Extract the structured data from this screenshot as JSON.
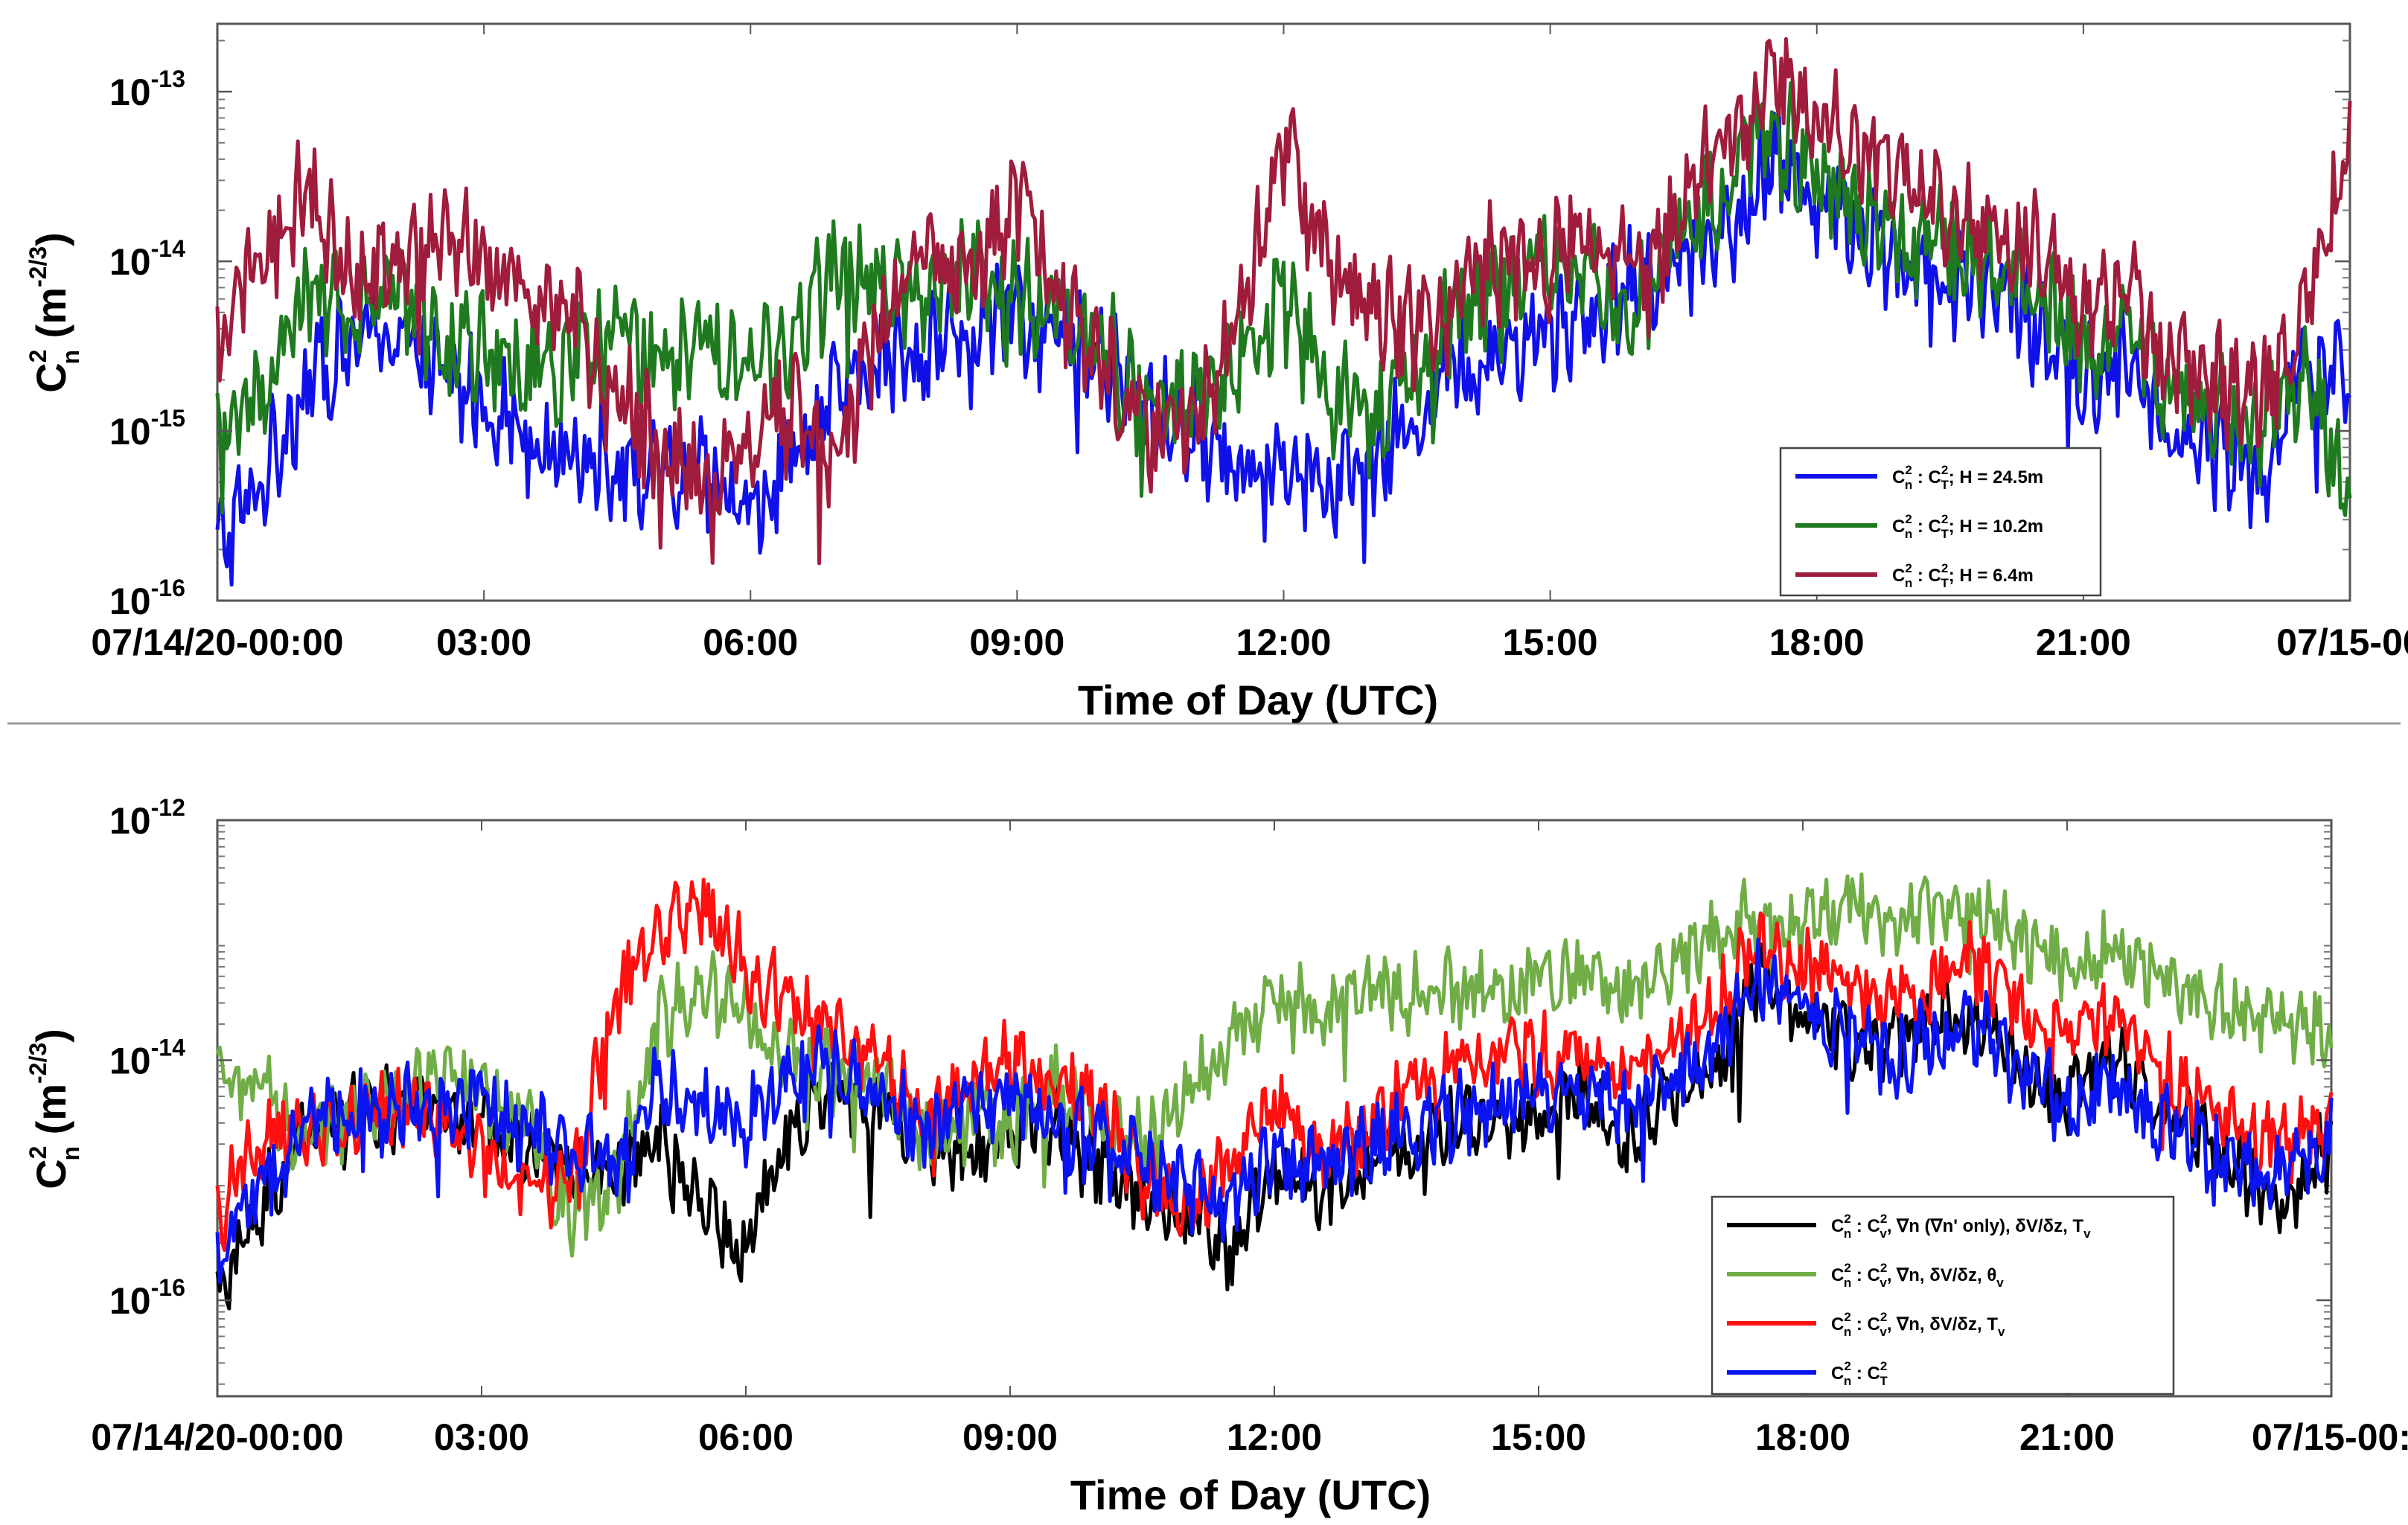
{
  "chart_data": [
    {
      "type": "line",
      "panel": "top",
      "xlabel": "Time of Day (UTC)",
      "ylabel": "C_n^2 (m^-2/3)",
      "yscale": "log",
      "xlim_hours": [
        0,
        24
      ],
      "ylim_exp": [
        -16,
        -12.6
      ],
      "x_tick_labels": [
        "07/14/20-00:00",
        "03:00",
        "06:00",
        "09:00",
        "12:00",
        "15:00",
        "18:00",
        "21:00",
        "07/15-00"
      ],
      "y_tick_exponents": [
        "-16",
        "-15",
        "-14",
        "-13"
      ],
      "legend_position": "bottom-right",
      "series": [
        {
          "name": "C_n^2 : C_T^2; H = 24.5m",
          "label_suffix": "; H = 24.5m",
          "color": "#1010e8",
          "x": [
            0,
            0.5,
            1,
            1.5,
            2,
            2.5,
            3,
            3.5,
            4,
            4.5,
            5,
            5.5,
            6,
            6.5,
            7,
            7.5,
            8,
            8.5,
            9,
            9.5,
            10,
            10.5,
            11,
            11.5,
            12,
            12.5,
            13,
            13.5,
            14,
            14.5,
            15,
            15.5,
            16,
            16.5,
            17,
            17.5,
            18,
            18.5,
            19,
            19.5,
            20,
            20.5,
            21,
            21.5,
            22,
            22.5,
            23,
            23.5,
            24
          ],
          "y": [
            -15.7,
            -15.3,
            -14.7,
            -14.5,
            -14.4,
            -14.7,
            -14.8,
            -15.0,
            -15.1,
            -15.2,
            -15.3,
            -15.3,
            -15.5,
            -15.1,
            -14.8,
            -14.6,
            -14.5,
            -14.4,
            -14.3,
            -14.5,
            -14.6,
            -14.9,
            -15.0,
            -15.2,
            -15.1,
            -15.3,
            -15.2,
            -14.9,
            -14.6,
            -14.5,
            -14.4,
            -14.3,
            -14.1,
            -14.0,
            -13.8,
            -13.4,
            -13.6,
            -13.8,
            -14.0,
            -14.2,
            -14.1,
            -14.4,
            -14.7,
            -14.6,
            -15.0,
            -15.1,
            -15.3,
            -14.6,
            -14.7
          ]
        },
        {
          "name": "C_n^2 : C_T^2; H = 10.2m",
          "label_suffix": "; H = 10.2m",
          "color": "#1f7a1f",
          "x": [
            0,
            0.5,
            1,
            1.5,
            2,
            2.5,
            3,
            3.5,
            4,
            4.5,
            5,
            5.5,
            6,
            6.5,
            7,
            7.5,
            8,
            8.5,
            9,
            9.5,
            10,
            10.5,
            11,
            11.5,
            12,
            12.5,
            13,
            13.5,
            14,
            14.5,
            15,
            15.5,
            16,
            16.5,
            17,
            17.5,
            18,
            18.5,
            19,
            19.5,
            20,
            20.5,
            21,
            21.5,
            22,
            22.5,
            23,
            23.5,
            24
          ],
          "y": [
            -15.0,
            -14.8,
            -14.2,
            -14.3,
            -14.2,
            -14.4,
            -14.5,
            -14.7,
            -14.6,
            -14.4,
            -14.6,
            -14.5,
            -14.7,
            -14.4,
            -14.0,
            -14.1,
            -14.2,
            -14.0,
            -14.2,
            -14.3,
            -14.5,
            -14.9,
            -14.8,
            -14.6,
            -14.2,
            -14.8,
            -14.9,
            -14.6,
            -14.3,
            -14.2,
            -14.0,
            -14.1,
            -14.3,
            -13.8,
            -13.5,
            -13.2,
            -13.5,
            -13.7,
            -13.9,
            -13.9,
            -14.0,
            -14.2,
            -14.5,
            -14.4,
            -14.8,
            -14.9,
            -15.0,
            -14.6,
            -15.5
          ]
        },
        {
          "name": "C_n^2 : C_T^2; H = 6.4m",
          "label_suffix": "; H = 6.4m",
          "color": "#a01c3c",
          "x": [
            0,
            0.5,
            1,
            1.5,
            2,
            2.5,
            3,
            3.5,
            4,
            4.5,
            5,
            5.5,
            6,
            6.5,
            7,
            7.5,
            8,
            8.5,
            9,
            9.5,
            10,
            10.5,
            11,
            11.5,
            12,
            12.5,
            13,
            13.5,
            14,
            14.5,
            15,
            15.5,
            16,
            16.5,
            17,
            17.5,
            18,
            18.5,
            19,
            19.5,
            20,
            20.5,
            21,
            21.5,
            22,
            22.5,
            23,
            23.5,
            24
          ],
          "y": [
            -14.5,
            -14.0,
            -13.6,
            -14.1,
            -14.0,
            -13.8,
            -14.0,
            -14.2,
            -14.3,
            -14.8,
            -15.1,
            -15.3,
            -15.0,
            -14.9,
            -15.1,
            -14.3,
            -14.0,
            -14.1,
            -13.6,
            -14.3,
            -14.6,
            -15.0,
            -14.9,
            -14.4,
            -13.3,
            -14.0,
            -14.3,
            -14.4,
            -14.1,
            -14.0,
            -14.0,
            -13.8,
            -14.2,
            -13.6,
            -13.3,
            -12.9,
            -13.2,
            -13.3,
            -13.6,
            -13.7,
            -13.8,
            -13.9,
            -14.4,
            -14.2,
            -14.6,
            -14.7,
            -14.8,
            -14.3,
            -13.3
          ]
        }
      ]
    },
    {
      "type": "line",
      "panel": "bottom",
      "xlabel": "Time of Day (UTC)",
      "ylabel": "C_n^2 (m^-2/3)",
      "yscale": "log",
      "xlim_hours": [
        0,
        24
      ],
      "ylim_exp": [
        -16.8,
        -12
      ],
      "x_tick_labels": [
        "07/14/20-00:00",
        "03:00",
        "06:00",
        "09:00",
        "12:00",
        "15:00",
        "18:00",
        "21:00",
        "07/15-00:"
      ],
      "y_tick_exponents": [
        "-16",
        "-14",
        "-12"
      ],
      "legend_position": "bottom-right",
      "series": [
        {
          "name": "C_n^2 : C_v^2, ∇n (∇n' only), δV/δz, T_v",
          "label_suffix": ", ∇n (∇n' only), δV/δz, T",
          "label_sub": "v",
          "color": "#000000",
          "x": [
            0,
            0.5,
            1,
            1.5,
            2,
            2.5,
            3,
            3.5,
            4,
            4.5,
            5,
            5.5,
            6,
            6.5,
            7,
            7.5,
            8,
            8.5,
            9,
            9.5,
            10,
            10.5,
            11,
            11.5,
            12,
            12.5,
            13,
            13.5,
            14,
            14.5,
            15,
            15.5,
            16,
            16.5,
            17,
            17.5,
            18,
            18.5,
            19,
            19.5,
            20,
            20.5,
            21,
            21.5,
            22,
            22.5,
            23,
            23.5,
            24
          ],
          "y": [
            -15.9,
            -15.2,
            -14.6,
            -14.5,
            -14.3,
            -14.5,
            -14.5,
            -14.7,
            -14.9,
            -15.0,
            -14.6,
            -15.2,
            -15.6,
            -14.5,
            -14.2,
            -14.4,
            -14.7,
            -14.8,
            -14.6,
            -14.5,
            -14.9,
            -15.1,
            -15.3,
            -15.6,
            -15.0,
            -15.1,
            -14.9,
            -14.7,
            -14.6,
            -14.5,
            -14.4,
            -14.3,
            -14.7,
            -14.3,
            -14.1,
            -13.3,
            -13.6,
            -13.8,
            -13.9,
            -13.6,
            -13.7,
            -14.0,
            -14.3,
            -14.0,
            -14.4,
            -14.6,
            -14.9,
            -15.2,
            -14.7
          ]
        },
        {
          "name": "C_n^2 : C_v^2, ∇n, δV/δz, θ_v",
          "label_suffix": ", ∇n, δV/δz, θ",
          "label_sub": "v",
          "color": "#70ad47",
          "x": [
            0,
            0.5,
            1,
            1.5,
            2,
            2.5,
            3,
            3.5,
            4,
            4.5,
            5,
            5.5,
            6,
            6.5,
            7,
            7.5,
            8,
            8.5,
            9,
            9.5,
            10,
            10.5,
            11,
            11.5,
            12,
            12.5,
            13,
            13.5,
            14,
            14.5,
            15,
            15.5,
            16,
            16.5,
            17,
            17.5,
            18,
            18.5,
            19,
            19.5,
            20,
            20.5,
            21,
            21.5,
            22,
            22.5,
            23,
            23.5,
            24
          ],
          "y": [
            -14.2,
            -14.3,
            -14.6,
            -14.5,
            -14.3,
            -14.1,
            -14.2,
            -14.5,
            -15.3,
            -15.1,
            -13.7,
            -13.4,
            -13.6,
            -14.0,
            -14.1,
            -14.2,
            -14.7,
            -14.5,
            -14.6,
            -14.2,
            -14.5,
            -14.7,
            -14.2,
            -13.9,
            -13.5,
            -13.6,
            -13.4,
            -13.5,
            -13.4,
            -13.5,
            -13.3,
            -13.3,
            -13.5,
            -13.2,
            -13.0,
            -12.8,
            -12.9,
            -12.6,
            -12.8,
            -12.8,
            -12.7,
            -13.0,
            -13.2,
            -13.1,
            -13.3,
            -13.4,
            -13.6,
            -13.7,
            -13.8
          ]
        },
        {
          "name": "C_n^2 : C_v^2, ∇n, δV/δz, T_v",
          "label_suffix": ", ∇n, δV/δz, T",
          "label_sub": "v",
          "color": "#ff1010",
          "x": [
            0,
            0.5,
            1,
            1.5,
            2,
            2.5,
            3,
            3.5,
            4,
            4.5,
            5,
            5.5,
            6,
            6.5,
            7,
            7.5,
            8,
            8.5,
            9,
            9.5,
            10,
            10.5,
            11,
            11.5,
            12,
            12.5,
            13,
            13.5,
            14,
            14.5,
            15,
            15.5,
            16,
            16.5,
            17,
            17.5,
            18,
            18.5,
            19,
            19.5,
            20,
            20.5,
            21,
            21.5,
            22,
            22.5,
            23,
            23.5,
            24
          ],
          "y": [
            -15.3,
            -14.6,
            -14.6,
            -14.5,
            -14.4,
            -14.5,
            -14.7,
            -15.0,
            -15.1,
            -13.5,
            -13.0,
            -12.7,
            -13.2,
            -13.6,
            -13.8,
            -14.0,
            -14.5,
            -14.3,
            -14.0,
            -14.2,
            -14.3,
            -15.0,
            -15.3,
            -14.8,
            -14.3,
            -14.8,
            -14.6,
            -14.3,
            -14.1,
            -14.0,
            -14.0,
            -13.9,
            -14.1,
            -13.8,
            -13.6,
            -13.0,
            -13.2,
            -13.4,
            -13.5,
            -13.3,
            -13.2,
            -13.6,
            -13.8,
            -13.7,
            -14.0,
            -14.3,
            -14.5,
            -14.7,
            -14.4
          ]
        },
        {
          "name": "C_n^2 : C_T^2",
          "label_suffix": "",
          "label_sub": "",
          "color": "#0a14f0",
          "x": [
            0,
            0.5,
            1,
            1.5,
            2,
            2.5,
            3,
            3.5,
            4,
            4.5,
            5,
            5.5,
            6,
            6.5,
            7,
            7.5,
            8,
            8.5,
            9,
            9.5,
            10,
            10.5,
            11,
            11.5,
            12,
            12.5,
            13,
            13.5,
            14,
            14.5,
            15,
            15.5,
            16,
            16.5,
            17,
            17.5,
            18,
            18.5,
            19,
            19.5,
            20,
            20.5,
            21,
            21.5,
            22,
            22.5,
            23,
            23.5,
            24
          ],
          "y": [
            -15.6,
            -15.0,
            -14.6,
            -14.4,
            -14.3,
            -14.4,
            -14.3,
            -14.6,
            -14.7,
            -14.9,
            -14.2,
            -14.4,
            -14.5,
            -14.2,
            -14.0,
            -14.3,
            -14.6,
            -14.4,
            -14.3,
            -14.4,
            -14.6,
            -14.9,
            -15.0,
            -15.2,
            -14.8,
            -14.9,
            -14.7,
            -14.6,
            -14.5,
            -14.3,
            -14.3,
            -14.2,
            -14.4,
            -14.1,
            -14.0,
            -13.3,
            -13.6,
            -13.8,
            -14.0,
            -13.8,
            -13.7,
            -14.1,
            -14.4,
            -14.2,
            -14.5,
            -14.7,
            -14.9,
            -15.0,
            -14.6
          ]
        }
      ]
    }
  ]
}
